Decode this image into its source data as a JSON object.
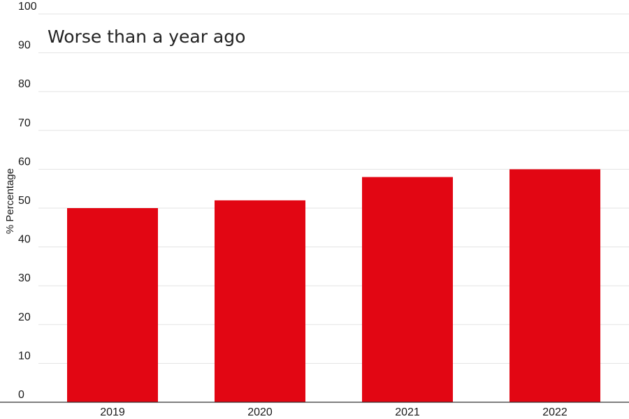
{
  "chart_data": {
    "type": "bar",
    "title": "Worse than a year ago",
    "ylabel": "% Percentage",
    "xlabel": "",
    "categories": [
      "2019",
      "2020",
      "2021",
      "2022"
    ],
    "values": [
      50,
      52,
      58,
      60
    ],
    "ylim": [
      0,
      100
    ],
    "yticks": [
      0,
      10,
      20,
      30,
      40,
      50,
      60,
      70,
      80,
      90,
      100
    ],
    "grid": true,
    "legend": "none",
    "bar_color": "#e20613"
  }
}
